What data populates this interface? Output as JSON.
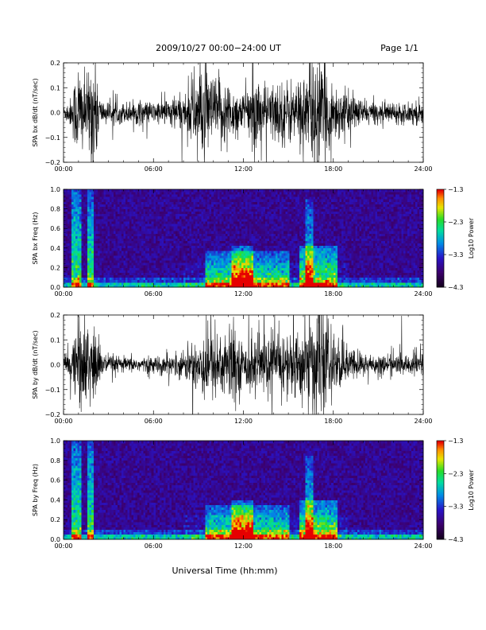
{
  "header": {
    "title": "2009/10/27   00:00−24:00 UT",
    "page": "Page 1/1"
  },
  "xlabel": "Universal Time (hh:mm)",
  "chart_data": [
    {
      "type": "line",
      "ylabel": "SPA bx dB/dt (nT/sec)",
      "x_ticks": [
        "00:00",
        "06:00",
        "12:00",
        "18:00",
        "24:00"
      ],
      "xlim_hours": [
        0,
        24
      ],
      "ylim": [
        -0.2,
        0.2
      ],
      "y_ticks": [
        "−0.2",
        "−0.1",
        "0.0",
        "0.1",
        "0.2"
      ],
      "activity": [
        [
          0.0,
          0.03
        ],
        [
          0.5,
          0.06
        ],
        [
          1.0,
          0.22
        ],
        [
          1.5,
          0.12
        ],
        [
          2.0,
          0.25
        ],
        [
          2.5,
          0.05
        ],
        [
          3.0,
          0.04
        ],
        [
          4.0,
          0.04
        ],
        [
          5.0,
          0.05
        ],
        [
          6.0,
          0.04
        ],
        [
          7.0,
          0.06
        ],
        [
          8.0,
          0.07
        ],
        [
          8.5,
          0.12
        ],
        [
          9.0,
          0.2
        ],
        [
          9.5,
          0.18
        ],
        [
          10.0,
          0.13
        ],
        [
          10.5,
          0.15
        ],
        [
          11.0,
          0.12
        ],
        [
          11.5,
          0.1
        ],
        [
          12.0,
          0.07
        ],
        [
          12.5,
          0.12
        ],
        [
          13.0,
          0.16
        ],
        [
          13.5,
          0.1
        ],
        [
          14.0,
          0.12
        ],
        [
          15.0,
          0.13
        ],
        [
          15.5,
          0.12
        ],
        [
          16.0,
          0.16
        ],
        [
          16.5,
          0.2
        ],
        [
          17.0,
          0.22
        ],
        [
          17.5,
          0.18
        ],
        [
          18.0,
          0.12
        ],
        [
          19.0,
          0.08
        ],
        [
          20.0,
          0.05
        ],
        [
          21.0,
          0.04
        ],
        [
          22.0,
          0.04
        ],
        [
          23.0,
          0.04
        ],
        [
          23.6,
          0.05
        ],
        [
          24.0,
          0.05
        ]
      ]
    },
    {
      "type": "heatmap",
      "ylabel": "SPA bx Freq (Hz)",
      "x_ticks": [
        "00:00",
        "06:00",
        "12:00",
        "18:00",
        "24:00"
      ],
      "xlim_hours": [
        0,
        24
      ],
      "ylim": [
        0,
        1.0
      ],
      "y_ticks": [
        "0.0",
        "0.2",
        "0.4",
        "0.6",
        "0.8",
        "1.0"
      ],
      "colorbar": {
        "label": "Log10 Power",
        "range": [
          -4.3,
          -1.3
        ],
        "ticks": [
          "−1.3",
          "−2.3",
          "−3.3",
          "−4.3"
        ]
      },
      "features": [
        {
          "t0": 0.6,
          "t1": 1.2,
          "f_top": 1.0,
          "level": 0.55
        },
        {
          "t0": 1.6,
          "t1": 2.0,
          "f_top": 1.0,
          "level": 0.55
        },
        {
          "t0": 9.5,
          "t1": 15.0,
          "f_top": 0.38,
          "level": 0.5
        },
        {
          "t0": 11.2,
          "t1": 12.6,
          "f_top": 0.42,
          "level": 0.6
        },
        {
          "t0": 15.8,
          "t1": 18.2,
          "f_top": 0.42,
          "level": 0.6
        },
        {
          "t0": 16.2,
          "t1": 16.7,
          "f_top": 0.9,
          "level": 0.45
        }
      ]
    },
    {
      "type": "line",
      "ylabel": "SPA by dB/dt (nT/sec)",
      "x_ticks": [
        "00:00",
        "06:00",
        "12:00",
        "18:00",
        "24:00"
      ],
      "xlim_hours": [
        0,
        24
      ],
      "ylim": [
        -0.2,
        0.2
      ],
      "y_ticks": [
        "−0.2",
        "−0.1",
        "0.0",
        "0.1",
        "0.2"
      ],
      "activity": [
        [
          0.0,
          0.03
        ],
        [
          0.5,
          0.06
        ],
        [
          1.0,
          0.2
        ],
        [
          1.5,
          0.15
        ],
        [
          2.0,
          0.22
        ],
        [
          2.5,
          0.05
        ],
        [
          3.0,
          0.04
        ],
        [
          4.0,
          0.03
        ],
        [
          5.0,
          0.03
        ],
        [
          6.0,
          0.03
        ],
        [
          7.0,
          0.04
        ],
        [
          8.0,
          0.05
        ],
        [
          8.5,
          0.08
        ],
        [
          9.0,
          0.12
        ],
        [
          9.5,
          0.16
        ],
        [
          10.0,
          0.12
        ],
        [
          10.5,
          0.15
        ],
        [
          11.0,
          0.16
        ],
        [
          11.5,
          0.14
        ],
        [
          12.0,
          0.07
        ],
        [
          12.5,
          0.12
        ],
        [
          13.0,
          0.14
        ],
        [
          13.5,
          0.1
        ],
        [
          14.0,
          0.12
        ],
        [
          15.0,
          0.14
        ],
        [
          15.5,
          0.12
        ],
        [
          16.0,
          0.15
        ],
        [
          16.5,
          0.2
        ],
        [
          17.0,
          0.22
        ],
        [
          17.5,
          0.18
        ],
        [
          18.0,
          0.12
        ],
        [
          19.0,
          0.07
        ],
        [
          20.0,
          0.05
        ],
        [
          21.0,
          0.04
        ],
        [
          22.0,
          0.04
        ],
        [
          23.0,
          0.04
        ],
        [
          23.6,
          0.06
        ],
        [
          24.0,
          0.05
        ]
      ]
    },
    {
      "type": "heatmap",
      "ylabel": "SPA by Freq (Hz)",
      "x_ticks": [
        "00:00",
        "06:00",
        "12:00",
        "18:00",
        "24:00"
      ],
      "xlim_hours": [
        0,
        24
      ],
      "ylim": [
        0,
        1.0
      ],
      "y_ticks": [
        "0.0",
        "0.2",
        "0.4",
        "0.6",
        "0.8",
        "1.0"
      ],
      "colorbar": {
        "label": "Log10 Power",
        "range": [
          -4.3,
          -1.3
        ],
        "ticks": [
          "−1.3",
          "−2.3",
          "−3.3",
          "−4.3"
        ]
      },
      "features": [
        {
          "t0": 0.6,
          "t1": 1.2,
          "f_top": 1.0,
          "level": 0.55
        },
        {
          "t0": 1.6,
          "t1": 2.0,
          "f_top": 1.0,
          "level": 0.55
        },
        {
          "t0": 9.5,
          "t1": 15.0,
          "f_top": 0.36,
          "level": 0.5
        },
        {
          "t0": 11.2,
          "t1": 12.6,
          "f_top": 0.4,
          "level": 0.6
        },
        {
          "t0": 15.8,
          "t1": 18.2,
          "f_top": 0.4,
          "level": 0.6
        },
        {
          "t0": 16.2,
          "t1": 16.7,
          "f_top": 0.85,
          "level": 0.45
        }
      ]
    }
  ]
}
